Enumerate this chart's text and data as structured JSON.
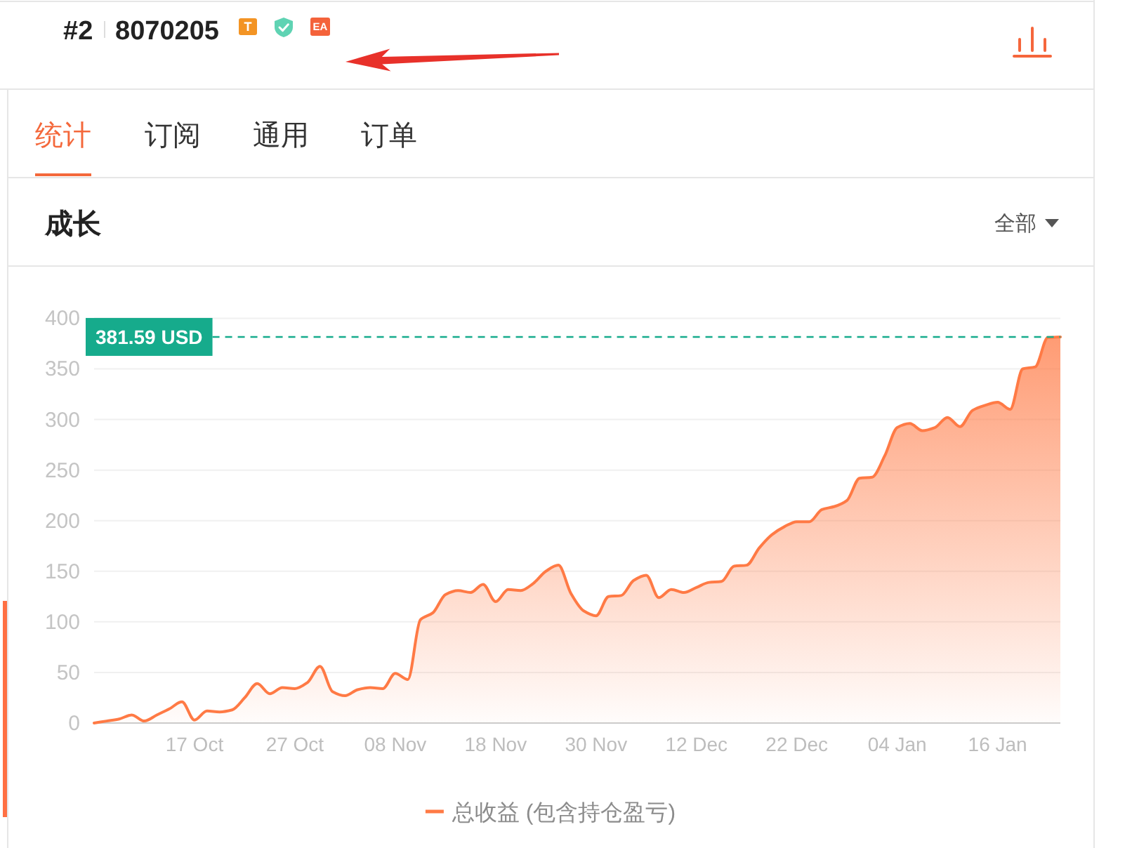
{
  "chart_data": {
    "type": "area",
    "title": "成长",
    "annotations": [
      "#2",
      "8070205",
      "T",
      "EA",
      "统计",
      "订阅",
      "通用",
      "订单",
      "全部"
    ],
    "categories": [
      null,
      null,
      null,
      null,
      null,
      null,
      null,
      null,
      "17 Oct",
      null,
      null,
      null,
      null,
      null,
      null,
      null,
      "27 Oct",
      null,
      null,
      null,
      null,
      null,
      null,
      null,
      "08 Nov",
      null,
      null,
      null,
      null,
      null,
      null,
      null,
      "18 Nov",
      null,
      null,
      null,
      null,
      null,
      null,
      null,
      "30 Nov",
      null,
      null,
      null,
      null,
      null,
      null,
      null,
      "12 Dec",
      null,
      null,
      null,
      null,
      null,
      null,
      null,
      "22 Dec",
      null,
      null,
      null,
      null,
      null,
      null,
      null,
      "04 Jan",
      null,
      null,
      null,
      null,
      null,
      null,
      null,
      "16 Jan",
      null,
      null,
      null,
      null,
      null
    ],
    "series": [
      {
        "name": "总收益 (包含持仓盈亏)",
        "color": "#ff7a45",
        "values": [
          0,
          2,
          4,
          8,
          2,
          8,
          14,
          21,
          3,
          12,
          11,
          13,
          25,
          39,
          29,
          35,
          34,
          40,
          56,
          31,
          27,
          33,
          35,
          34,
          49,
          43,
          102,
          109,
          127,
          131,
          129,
          137,
          120,
          132,
          131,
          138,
          150,
          156,
          128,
          111,
          106,
          125,
          126,
          141,
          146,
          124,
          132,
          129,
          134,
          139,
          140,
          155,
          156,
          173,
          186,
          194,
          199,
          199,
          211,
          214,
          220,
          242,
          243,
          264,
          292,
          296,
          289,
          292,
          302,
          293,
          309,
          314,
          317,
          310,
          350,
          352,
          381,
          381.59
        ]
      }
    ],
    "ylim": [
      0,
      400
    ],
    "yticks": [
      0,
      50,
      100,
      150,
      200,
      250,
      300,
      350,
      400
    ],
    "grid": "y",
    "legend": "bottom",
    "ref_lines": [
      {
        "axis": "y",
        "value": 381.59,
        "label": "381.59 USD",
        "color": "#16ab8c",
        "line_style": "dashed"
      }
    ]
  }
}
